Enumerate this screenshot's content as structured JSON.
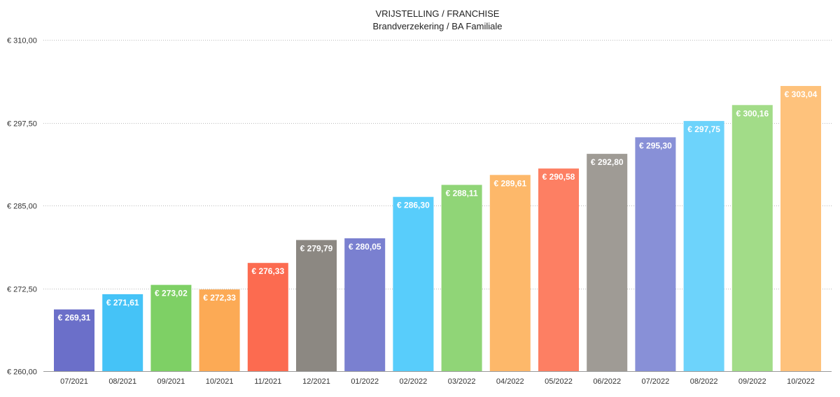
{
  "chart_data": {
    "type": "bar",
    "title": "VRIJSTELLING / FRANCHISE",
    "subtitle": "Brandverzekering / BA Familiale",
    "xlabel": "",
    "ylabel": "",
    "ylim": [
      260,
      310
    ],
    "yticks": [
      "€ 260,00",
      "€ 272,50",
      "€ 285,00",
      "€ 297,50",
      "€ 310,00"
    ],
    "ytick_values": [
      260,
      272.5,
      285,
      297.5,
      310
    ],
    "grid": true,
    "categories": [
      "07/2021",
      "08/2021",
      "09/2021",
      "10/2021",
      "11/2021",
      "12/2021",
      "01/2022",
      "02/2022",
      "03/2022",
      "04/2022",
      "05/2022",
      "06/2022",
      "07/2022",
      "08/2022",
      "09/2022",
      "10/2022"
    ],
    "values": [
      269.31,
      271.61,
      273.02,
      272.33,
      276.33,
      279.79,
      280.05,
      286.3,
      288.11,
      289.61,
      290.58,
      292.8,
      295.3,
      297.75,
      300.16,
      303.04
    ],
    "data_labels": [
      "€ 269,31",
      "€ 271,61",
      "€ 273,02",
      "€ 272,33",
      "€ 276,33",
      "€ 279,79",
      "€ 280,05",
      "€ 286,30",
      "€ 288,11",
      "€ 289,61",
      "€ 290,58",
      "€ 292,80",
      "€ 295,30",
      "€ 297,75",
      "€ 300,16",
      "€ 303,04"
    ],
    "colors": [
      "#6b6fc9",
      "#45c3f7",
      "#7ed065",
      "#fcaa55",
      "#fc6b50",
      "#8c8882",
      "#7a80d0",
      "#58cdfb",
      "#90d577",
      "#fdb86a",
      "#fd7f63",
      "#9f9b95",
      "#8890d7",
      "#6dd3fb",
      "#a2dc88",
      "#fec27c"
    ]
  }
}
